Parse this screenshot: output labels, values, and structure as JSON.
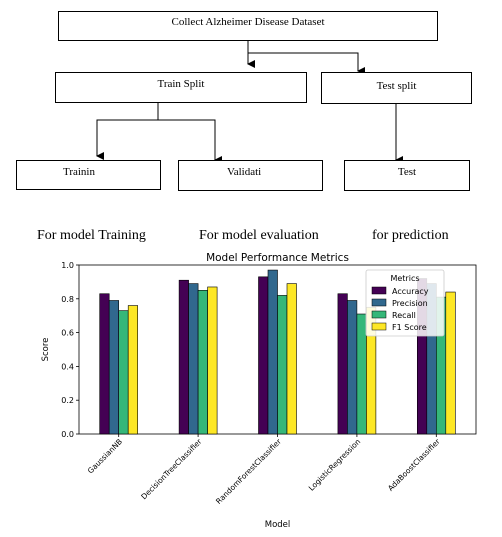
{
  "flowchart": {
    "dataset_label": "Collect Alzheimer Disease Dataset",
    "train_label": "Train Split",
    "test_label": "Test split",
    "training_label": "Trainin",
    "validation_label": "Validati",
    "testing_label": "Test"
  },
  "captions": {
    "training": "For model Training",
    "evaluation": "For model evaluation",
    "prediction": "for prediction"
  },
  "colors": {
    "accuracy": "#440154",
    "precision": "#31688e",
    "recall": "#35b779",
    "f1": "#fde725"
  },
  "chart_data": {
    "type": "bar",
    "title": "Model Performance Metrics",
    "xlabel": "Model",
    "ylabel": "Score",
    "ylim": [
      0,
      1.0
    ],
    "yticks": [
      "0.0",
      "0.2",
      "0.4",
      "0.6",
      "0.8",
      "1.0"
    ],
    "categories": [
      "GaussianNB",
      "DecisionTreeClassifier",
      "RandomForestClassifier",
      "LogisticRegression",
      "AdaBoostClassifier"
    ],
    "legend_title": "Metrics",
    "legend_position": "top-right",
    "grid": false,
    "series": [
      {
        "name": "Accuracy",
        "values": [
          0.83,
          0.91,
          0.93,
          0.83,
          0.92
        ]
      },
      {
        "name": "Precision",
        "values": [
          0.79,
          0.89,
          0.97,
          0.79,
          0.89
        ]
      },
      {
        "name": "Recall",
        "values": [
          0.73,
          0.85,
          0.82,
          0.71,
          0.81
        ]
      },
      {
        "name": "F1 Score",
        "values": [
          0.76,
          0.87,
          0.89,
          0.75,
          0.84
        ]
      }
    ]
  }
}
